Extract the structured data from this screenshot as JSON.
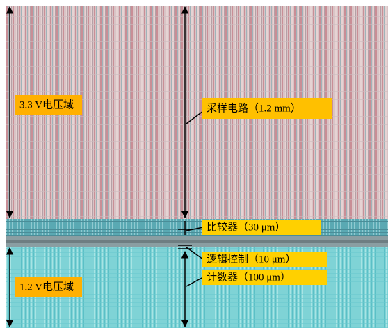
{
  "labels": {
    "high_voltage_domain": "3.3 V电压域",
    "low_voltage_domain": "1.2 V电压域",
    "sampling_circuit": "采样电路（1.2 mm）",
    "comparator": "比较器（30 μm）",
    "logic_control": "逻辑控制（10 μm）",
    "counter": "计数器（100 μm）"
  }
}
